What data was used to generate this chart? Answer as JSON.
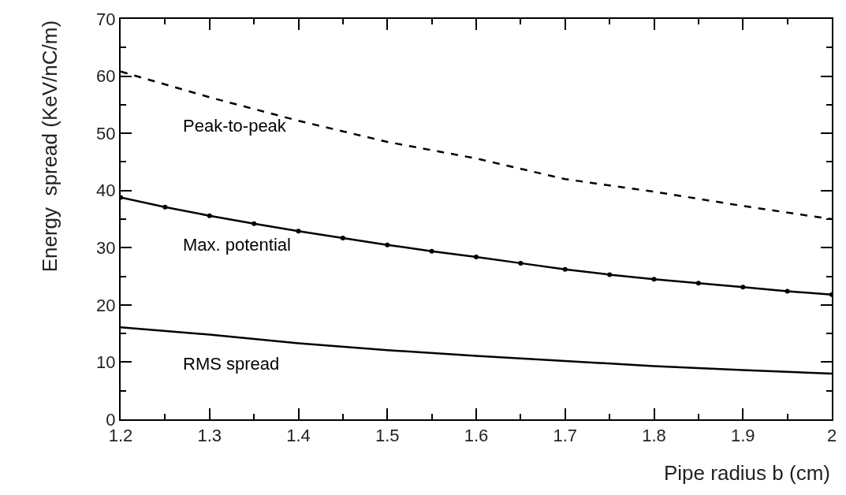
{
  "chart_data": {
    "type": "line",
    "xlabel": "Pipe radius b (cm)",
    "ylabel": "Energy  spread (KeV/nC/m)",
    "xlim": [
      1.2,
      2.0
    ],
    "xticks": [
      1.2,
      1.3,
      1.4,
      1.5,
      1.6,
      1.7,
      1.8,
      1.9,
      2
    ],
    "ylim": [
      0,
      70
    ],
    "yticks": [
      0,
      10,
      20,
      30,
      40,
      50,
      60,
      70
    ],
    "legend": false,
    "x": [
      1.2,
      1.3,
      1.4,
      1.5,
      1.6,
      1.7,
      1.8,
      1.9,
      2.0
    ],
    "series": [
      {
        "name": "Peak-to-peak",
        "color": "#000000",
        "line_style": "dashed",
        "marker": "none",
        "values": [
          60.8,
          56.3,
          52.2,
          48.5,
          45.6,
          42.0,
          39.8,
          37.3,
          35.0
        ]
      },
      {
        "name": "Max. potential",
        "color": "#000000",
        "line_style": "solid",
        "marker": "circle",
        "x": [
          1.2,
          1.25,
          1.3,
          1.35,
          1.4,
          1.45,
          1.5,
          1.55,
          1.6,
          1.65,
          1.7,
          1.75,
          1.8,
          1.85,
          1.9,
          1.95,
          2.0
        ],
        "values": [
          38.8,
          37.1,
          35.6,
          34.2,
          32.9,
          31.7,
          30.5,
          29.4,
          28.4,
          27.3,
          26.2,
          25.3,
          24.5,
          23.8,
          23.1,
          22.4,
          21.8
        ]
      },
      {
        "name": "RMS spread",
        "color": "#000000",
        "line_style": "solid",
        "marker": "none",
        "values": [
          16.1,
          14.8,
          13.3,
          12.1,
          11.1,
          10.2,
          9.3,
          8.6,
          8.0
        ]
      }
    ]
  }
}
